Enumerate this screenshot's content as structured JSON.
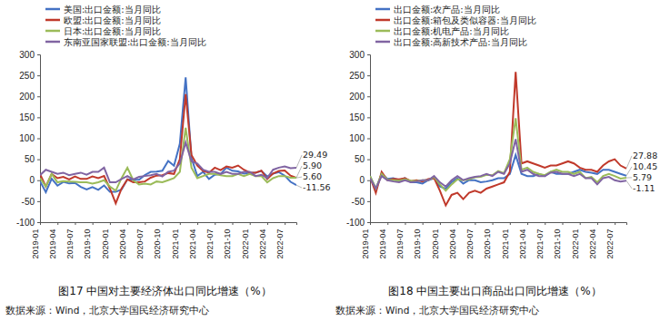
{
  "chart_data": [
    {
      "type": "line",
      "title": "图17 中国对主要经济体出口同比增速（%）",
      "source": "数据来源：Wind，北京大学国民经济研究中心",
      "categories": [
        "2019-01",
        null,
        null,
        "2019-04",
        null,
        null,
        "2019-07",
        null,
        null,
        "2019-10",
        null,
        null,
        "2020-01",
        null,
        null,
        "2020-04",
        null,
        null,
        "2020-07",
        null,
        null,
        "2020-10",
        null,
        null,
        "2021-01",
        null,
        null,
        "2021-04",
        null,
        null,
        "2021-07",
        null,
        null,
        "2021-10",
        null,
        null,
        "2022-01",
        null,
        null,
        "2022-04",
        null,
        null,
        "2022-07",
        null,
        null
      ],
      "series": [
        {
          "name": "美国:出口金额:当月同比",
          "color": "#4472c4",
          "values": [
            -2.4,
            -28.6,
            3.5,
            -13,
            -4,
            -7.8,
            -6.5,
            -16,
            -21.9,
            -16.2,
            -23,
            -12.5,
            -27.7,
            -27.7,
            -22,
            2,
            1,
            1,
            12.5,
            20,
            20.5,
            22.5,
            46,
            34.5,
            87,
            245,
            53,
            10,
            20,
            3,
            13,
            15,
            30,
            22.5,
            21,
            15.5,
            18,
            18,
            22,
            9,
            15.7,
            19.3,
            11,
            -3.8,
            -11.56
          ]
        },
        {
          "name": "欧盟:出口金额:当月同比",
          "color": "#c0392b",
          "values": [
            15,
            -15,
            15,
            5,
            8,
            2,
            9,
            3,
            3,
            9,
            5,
            10,
            -20,
            -55,
            -20,
            2,
            -5,
            -5,
            -3,
            6,
            11,
            12,
            17,
            15,
            50,
            205,
            60,
            35,
            22,
            18,
            30,
            24,
            33,
            30,
            35,
            25,
            18,
            18,
            23,
            3,
            16,
            22,
            23,
            11,
            5.6
          ]
        },
        {
          "name": "日本:出口金额:当月同比",
          "color": "#9bbb59",
          "values": [
            5,
            -15,
            15,
            -5,
            -2,
            -3,
            -4,
            -5,
            -5,
            -8,
            -5,
            0,
            -15,
            -25,
            5,
            30,
            0,
            -10,
            -8,
            -10,
            -3,
            -5,
            0,
            5,
            20,
            125,
            30,
            5,
            10,
            15,
            15,
            12,
            10,
            10,
            15,
            10,
            15,
            10,
            10,
            -5,
            5,
            10,
            10,
            6,
            5.9
          ]
        },
        {
          "name": "东南亚国家联盟:出口金额:当月同比",
          "color": "#8064a2",
          "values": [
            12,
            25,
            20,
            15,
            18,
            12,
            15,
            18,
            13,
            20,
            20,
            30,
            -5,
            -5,
            3,
            10,
            2,
            8,
            10,
            12,
            15,
            9,
            20,
            23,
            40,
            90,
            45,
            40,
            25,
            20,
            20,
            15,
            20,
            15,
            15,
            20,
            20,
            10,
            13,
            5,
            25,
            30,
            33,
            28.5,
            29.49
          ]
        }
      ],
      "annotations": [
        {
          "text": "29.49",
          "x": 44,
          "y": 29.49
        },
        {
          "text": "5.90",
          "x": 44,
          "y": 5.9
        },
        {
          "text": "5.60",
          "x": 44,
          "y": 5.6
        },
        {
          "text": "-11.56",
          "x": 44,
          "y": -11.56
        }
      ],
      "ylim": [
        -100,
        300
      ],
      "yticks": [
        -100,
        -50,
        0,
        50,
        100,
        150,
        200,
        250,
        300
      ],
      "grid": false,
      "legend": "upper left"
    },
    {
      "type": "line",
      "title": "图18 中国主要出口商品出口同比增速（%）",
      "source": "数据来源：Wind，北京大学国民经济研究中心",
      "categories": [
        "2019-01",
        null,
        null,
        "2019-04",
        null,
        null,
        "2019-07",
        null,
        null,
        "2019-10",
        null,
        null,
        "2020-01",
        null,
        null,
        "2020-04",
        null,
        null,
        "2020-07",
        null,
        null,
        "2020-10",
        null,
        null,
        "2021-01",
        null,
        null,
        "2021-04",
        null,
        null,
        "2021-07",
        null,
        null,
        "2021-10",
        null,
        null,
        "2022-01",
        null,
        null,
        "2022-04",
        null,
        null,
        "2022-07",
        null,
        null
      ],
      "series": [
        {
          "name": "出口金额:农产品:当月同比",
          "color": "#4472c4",
          "values": [
            10,
            -20,
            15,
            3,
            5,
            0,
            5,
            -5,
            -5,
            -8,
            0,
            5,
            -15,
            -20,
            -5,
            5,
            -8,
            0,
            0,
            -5,
            -3,
            0,
            5,
            5,
            15,
            60,
            15,
            10,
            10,
            15,
            10,
            20,
            15,
            15,
            15,
            20,
            25,
            20,
            18,
            15,
            25,
            25,
            20,
            15,
            10.45
          ]
        },
        {
          "name": "出口金额:箱包及类似容器:当月同比",
          "color": "#c0392b",
          "values": [
            8,
            -30,
            20,
            0,
            3,
            2,
            5,
            -2,
            0,
            -3,
            3,
            5,
            -25,
            -60,
            -35,
            -30,
            -45,
            -30,
            -25,
            -30,
            -20,
            -15,
            -10,
            -5,
            20,
            258,
            40,
            45,
            40,
            35,
            30,
            35,
            35,
            40,
            45,
            40,
            30,
            25,
            25,
            20,
            35,
            45,
            50,
            35,
            27.88
          ]
        },
        {
          "name": "出口金额:机电产品:当月同比",
          "color": "#9bbb59",
          "values": [
            10,
            -20,
            15,
            1,
            0,
            -1,
            2,
            -1,
            -2,
            0,
            0,
            8,
            -10,
            -25,
            -10,
            2,
            0,
            2,
            7,
            8,
            13,
            12,
            22,
            17,
            50,
            148,
            25,
            30,
            20,
            15,
            12,
            20,
            25,
            20,
            20,
            15,
            20,
            5,
            8,
            -5,
            10,
            15,
            10,
            4,
            5.79
          ]
        },
        {
          "name": "出口金额:高新技术产品:当月同比",
          "color": "#8064a2",
          "values": [
            5,
            -20,
            10,
            0,
            -3,
            -5,
            0,
            -5,
            -3,
            0,
            0,
            10,
            -5,
            -15,
            0,
            10,
            0,
            5,
            8,
            10,
            15,
            10,
            20,
            15,
            40,
            98,
            20,
            25,
            15,
            10,
            10,
            18,
            20,
            15,
            15,
            10,
            15,
            5,
            5,
            -10,
            5,
            8,
            0,
            -3,
            -1.11
          ]
        }
      ],
      "annotations": [
        {
          "text": "27.88",
          "x": 44,
          "y": 27.88
        },
        {
          "text": "10.45",
          "x": 44,
          "y": 10.45
        },
        {
          "text": "5.79",
          "x": 44,
          "y": 5.79
        },
        {
          "text": "-1.11",
          "x": 44,
          "y": -1.11
        }
      ],
      "ylim": [
        -100,
        300
      ],
      "yticks": [
        -100,
        -50,
        0,
        50,
        100,
        150,
        200,
        250,
        300
      ],
      "grid": false,
      "legend": "upper left"
    }
  ]
}
